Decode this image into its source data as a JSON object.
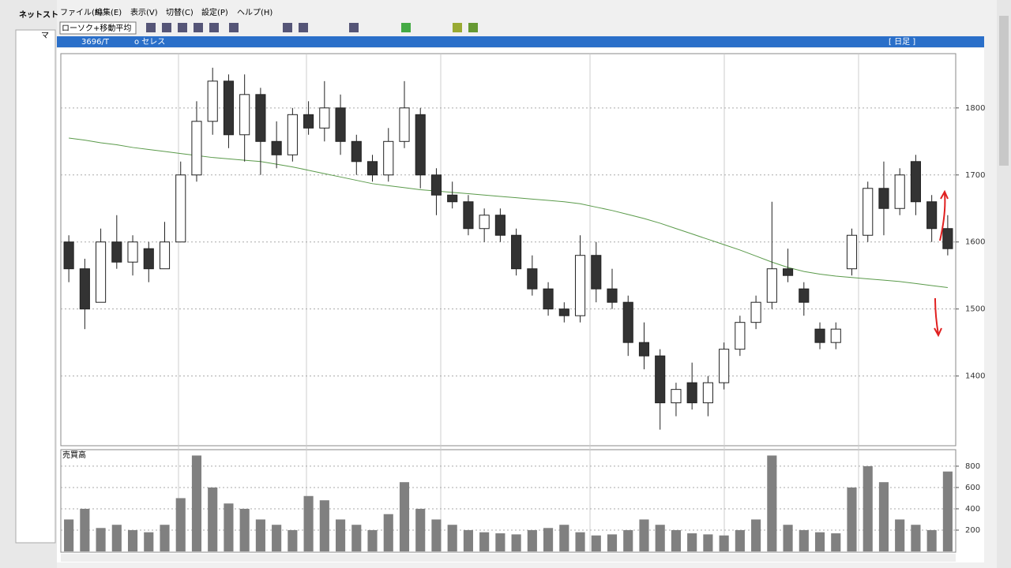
{
  "app": {
    "sidebar_title": "ネットスト",
    "sidebar_item": "マ",
    "menu": [
      "ファイル(F)",
      "編集(E)",
      "表示(V)",
      "切替(C)",
      "設定(P)",
      "ヘルプ(H)"
    ],
    "chart_mode": "ローソク+移動平均",
    "code": "3696/T",
    "name": "o セレス",
    "period": "[ 日足 ]"
  },
  "chart_data": [
    {
      "type": "candlestick",
      "open": [
        1600,
        1560,
        1510,
        1600,
        1570,
        1590,
        1560,
        1600,
        1700,
        1780,
        1840,
        1760,
        1820,
        1750,
        1730,
        1790,
        1770,
        1800,
        1750,
        1720,
        1700,
        1750,
        1790,
        1700,
        1670,
        1660,
        1620,
        1640,
        1610,
        1560,
        1530,
        1500,
        1490,
        1580,
        1530,
        1510,
        1450,
        1430,
        1360,
        1390,
        1360,
        1390,
        1440,
        1480,
        1510,
        1560,
        1530,
        1470,
        1450,
        1560,
        1610,
        1680,
        1650,
        1720,
        1660,
        1620
      ],
      "high": [
        1610,
        1575,
        1620,
        1640,
        1610,
        1600,
        1630,
        1720,
        1810,
        1860,
        1850,
        1850,
        1830,
        1780,
        1800,
        1810,
        1840,
        1820,
        1760,
        1730,
        1770,
        1840,
        1800,
        1710,
        1690,
        1670,
        1650,
        1650,
        1620,
        1580,
        1540,
        1510,
        1610,
        1600,
        1560,
        1520,
        1480,
        1440,
        1390,
        1420,
        1400,
        1450,
        1490,
        1520,
        1660,
        1590,
        1540,
        1480,
        1480,
        1620,
        1690,
        1720,
        1710,
        1730,
        1670,
        1640
      ],
      "low": [
        1540,
        1470,
        1510,
        1560,
        1550,
        1540,
        1560,
        1600,
        1690,
        1760,
        1740,
        1720,
        1700,
        1710,
        1720,
        1760,
        1750,
        1730,
        1700,
        1690,
        1690,
        1740,
        1680,
        1640,
        1650,
        1610,
        1600,
        1600,
        1550,
        1520,
        1490,
        1480,
        1480,
        1510,
        1500,
        1430,
        1410,
        1320,
        1340,
        1350,
        1340,
        1380,
        1430,
        1470,
        1500,
        1540,
        1490,
        1440,
        1440,
        1550,
        1600,
        1610,
        1640,
        1640,
        1600,
        1580
      ],
      "close": [
        1560,
        1500,
        1600,
        1570,
        1600,
        1560,
        1600,
        1700,
        1780,
        1840,
        1760,
        1820,
        1750,
        1730,
        1790,
        1770,
        1800,
        1750,
        1720,
        1700,
        1750,
        1800,
        1700,
        1670,
        1660,
        1620,
        1640,
        1610,
        1560,
        1530,
        1500,
        1490,
        1580,
        1530,
        1510,
        1450,
        1430,
        1360,
        1380,
        1360,
        1390,
        1440,
        1480,
        1510,
        1560,
        1550,
        1510,
        1450,
        1470,
        1610,
        1680,
        1650,
        1700,
        1660,
        1620,
        1590
      ],
      "ma": {
        "color": "#5a9a4a",
        "values": [
          1755,
          1752,
          1748,
          1745,
          1741,
          1738,
          1735,
          1732,
          1729,
          1726,
          1724,
          1722,
          1720,
          1716,
          1712,
          1707,
          1702,
          1697,
          1692,
          1687,
          1684,
          1681,
          1678,
          1676,
          1674,
          1672,
          1670,
          1668,
          1666,
          1664,
          1662,
          1660,
          1657,
          1652,
          1647,
          1641,
          1635,
          1628,
          1620,
          1612,
          1604,
          1596,
          1588,
          1579,
          1570,
          1562,
          1556,
          1552,
          1549,
          1547,
          1545,
          1543,
          1541,
          1538,
          1535,
          1532
        ]
      },
      "up_color": "#ffffff",
      "down_color": "#333333",
      "ylim": [
        1296,
        1881
      ],
      "yticks": [
        1400,
        1500,
        1600,
        1700,
        1800
      ],
      "grid": true
    },
    {
      "type": "bar",
      "title": "売買高",
      "color": "#808080",
      "values": [
        300,
        400,
        220,
        250,
        200,
        180,
        250,
        500,
        900,
        600,
        450,
        400,
        300,
        250,
        200,
        520,
        480,
        300,
        250,
        200,
        350,
        650,
        400,
        300,
        250,
        200,
        180,
        170,
        160,
        200,
        220,
        250,
        180,
        150,
        160,
        200,
        300,
        250,
        200,
        170,
        160,
        150,
        200,
        300,
        900,
        250,
        200,
        180,
        170,
        600,
        800,
        650,
        300,
        250,
        200,
        750
      ],
      "ylim": [
        0,
        955
      ],
      "yticks": [
        200,
        400,
        600,
        800
      ],
      "grid": true
    }
  ]
}
